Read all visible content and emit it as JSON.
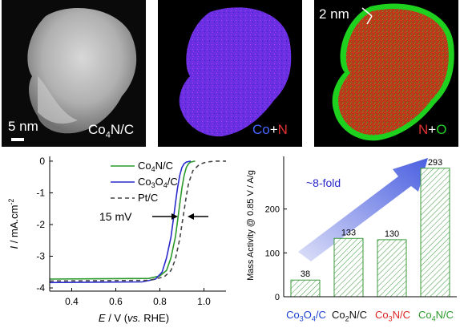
{
  "images": {
    "haadf": {
      "label_main": "Co",
      "label_sub": "4",
      "label_rest": "N/C",
      "scalebar": "5 nm"
    },
    "map_con": {
      "label_a": "Co",
      "label_plus": "+",
      "label_b": "N",
      "colors": {
        "a": "#4466ff",
        "b": "#e03030"
      }
    },
    "map_no": {
      "label_a": "N",
      "label_plus": "+",
      "label_b": "O",
      "thickness": "2 nm",
      "colors": {
        "a": "#e03030",
        "b": "#22cc22"
      }
    }
  },
  "chart_data": [
    {
      "type": "line",
      "xlabel_italic": "E",
      "xlabel_rest": " / V (",
      "xlabel_vs": "vs.",
      "xlabel_end": " RHE)",
      "ylabel_italic": "I",
      "ylabel_rest": " / mA.cm",
      "ylabel_sup": "-2",
      "xlim": [
        0.3,
        1.1
      ],
      "ylim": [
        -4.1,
        0.15
      ],
      "xticks": [
        "0.4",
        "0.6",
        "0.8",
        "1.0"
      ],
      "yticks": [
        "0",
        "-1",
        "-2",
        "-3",
        "-4"
      ],
      "annotation": "15 mV",
      "legend_position": "top-left",
      "series": [
        {
          "name_a": "Co",
          "name_sub": "4",
          "name_b": "N/C",
          "color": "#2a9a2a",
          "dash": "solid",
          "x": [
            0.3,
            0.75,
            0.8,
            0.83,
            0.85,
            0.87,
            0.88,
            0.89,
            0.9,
            0.91,
            0.92,
            0.93,
            0.94,
            0.96
          ],
          "y": [
            -3.72,
            -3.7,
            -3.62,
            -3.45,
            -3.05,
            -2.4,
            -1.9,
            -1.35,
            -0.85,
            -0.45,
            -0.2,
            -0.08,
            -0.03,
            0.0
          ]
        },
        {
          "name_a": "Co",
          "name_sub": "3",
          "name_b": "O",
          "name_sub2": "4",
          "name_c": "/C",
          "color": "#2a2acc",
          "dash": "solid",
          "x": [
            0.3,
            0.72,
            0.78,
            0.81,
            0.83,
            0.85,
            0.86,
            0.87,
            0.88,
            0.89,
            0.9,
            0.91,
            0.92,
            0.94
          ],
          "y": [
            -3.83,
            -3.81,
            -3.72,
            -3.5,
            -3.05,
            -2.4,
            -1.9,
            -1.35,
            -0.85,
            -0.45,
            -0.2,
            -0.08,
            -0.03,
            0.0
          ]
        },
        {
          "name_a": "Pt/C",
          "color": "#444444",
          "dash": "dashed",
          "x": [
            0.3,
            0.75,
            0.82,
            0.85,
            0.87,
            0.89,
            0.9,
            0.91,
            0.92,
            0.93,
            0.95,
            0.98,
            1.01,
            1.05,
            1.1
          ],
          "y": [
            -3.78,
            -3.76,
            -3.65,
            -3.45,
            -3.1,
            -2.45,
            -2.0,
            -1.55,
            -1.1,
            -0.7,
            -0.3,
            -0.1,
            -0.03,
            0.0,
            0.0
          ]
        }
      ]
    },
    {
      "type": "bar",
      "ylabel": "Mass Activity @ 0.85 V / A/g",
      "ylim": [
        0,
        320
      ],
      "yticks": [
        "0",
        "100",
        "200"
      ],
      "annotation": "~8-fold",
      "categories": [
        {
          "a": "Co",
          "s1": "3",
          "b": "O",
          "s2": "4",
          "c": "/C",
          "color": "#1a3fd0"
        },
        {
          "a": "Co",
          "s1": "2",
          "b": "N/C",
          "s2": "",
          "c": "",
          "color": "#111111"
        },
        {
          "a": "Co",
          "s1": "3",
          "b": "N/C",
          "s2": "",
          "c": "",
          "color": "#dd2222"
        },
        {
          "a": "Co",
          "s1": "4",
          "b": "N/C",
          "s2": "",
          "c": "",
          "color": "#2a9a2a"
        }
      ],
      "values": [
        38,
        133,
        130,
        293
      ],
      "value_labels": [
        "38",
        "133",
        "130",
        "293"
      ],
      "bar_color": "#3a9a3a"
    }
  ]
}
